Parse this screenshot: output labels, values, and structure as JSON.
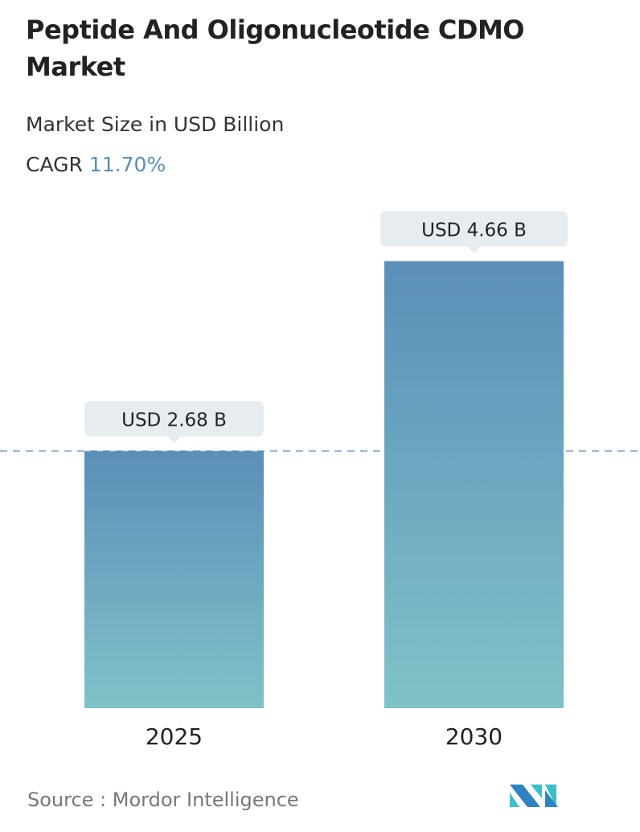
{
  "title": "Peptide And Oligonucleotide CDMO Market",
  "subtitle": "Market Size in USD Billion",
  "cagr_label": "CAGR",
  "cagr_value": "11.70%",
  "source": "Source :  Mordor Intelligence",
  "logo_text": "Mordor Intelligence",
  "colors": {
    "bar_top": "#5b8fb8",
    "bar_bottom": "#80c2c8",
    "label_bg": "#e6ecef",
    "dash": "#5b8fb8"
  },
  "chart_data": {
    "type": "bar",
    "categories": [
      "2025",
      "2030"
    ],
    "values": [
      2.68,
      4.66
    ],
    "data_labels": [
      "USD 2.68 B",
      "USD 4.66 B"
    ],
    "ylabel": "Market Size in USD Billion",
    "reference_line": 2.68,
    "grid": false
  }
}
